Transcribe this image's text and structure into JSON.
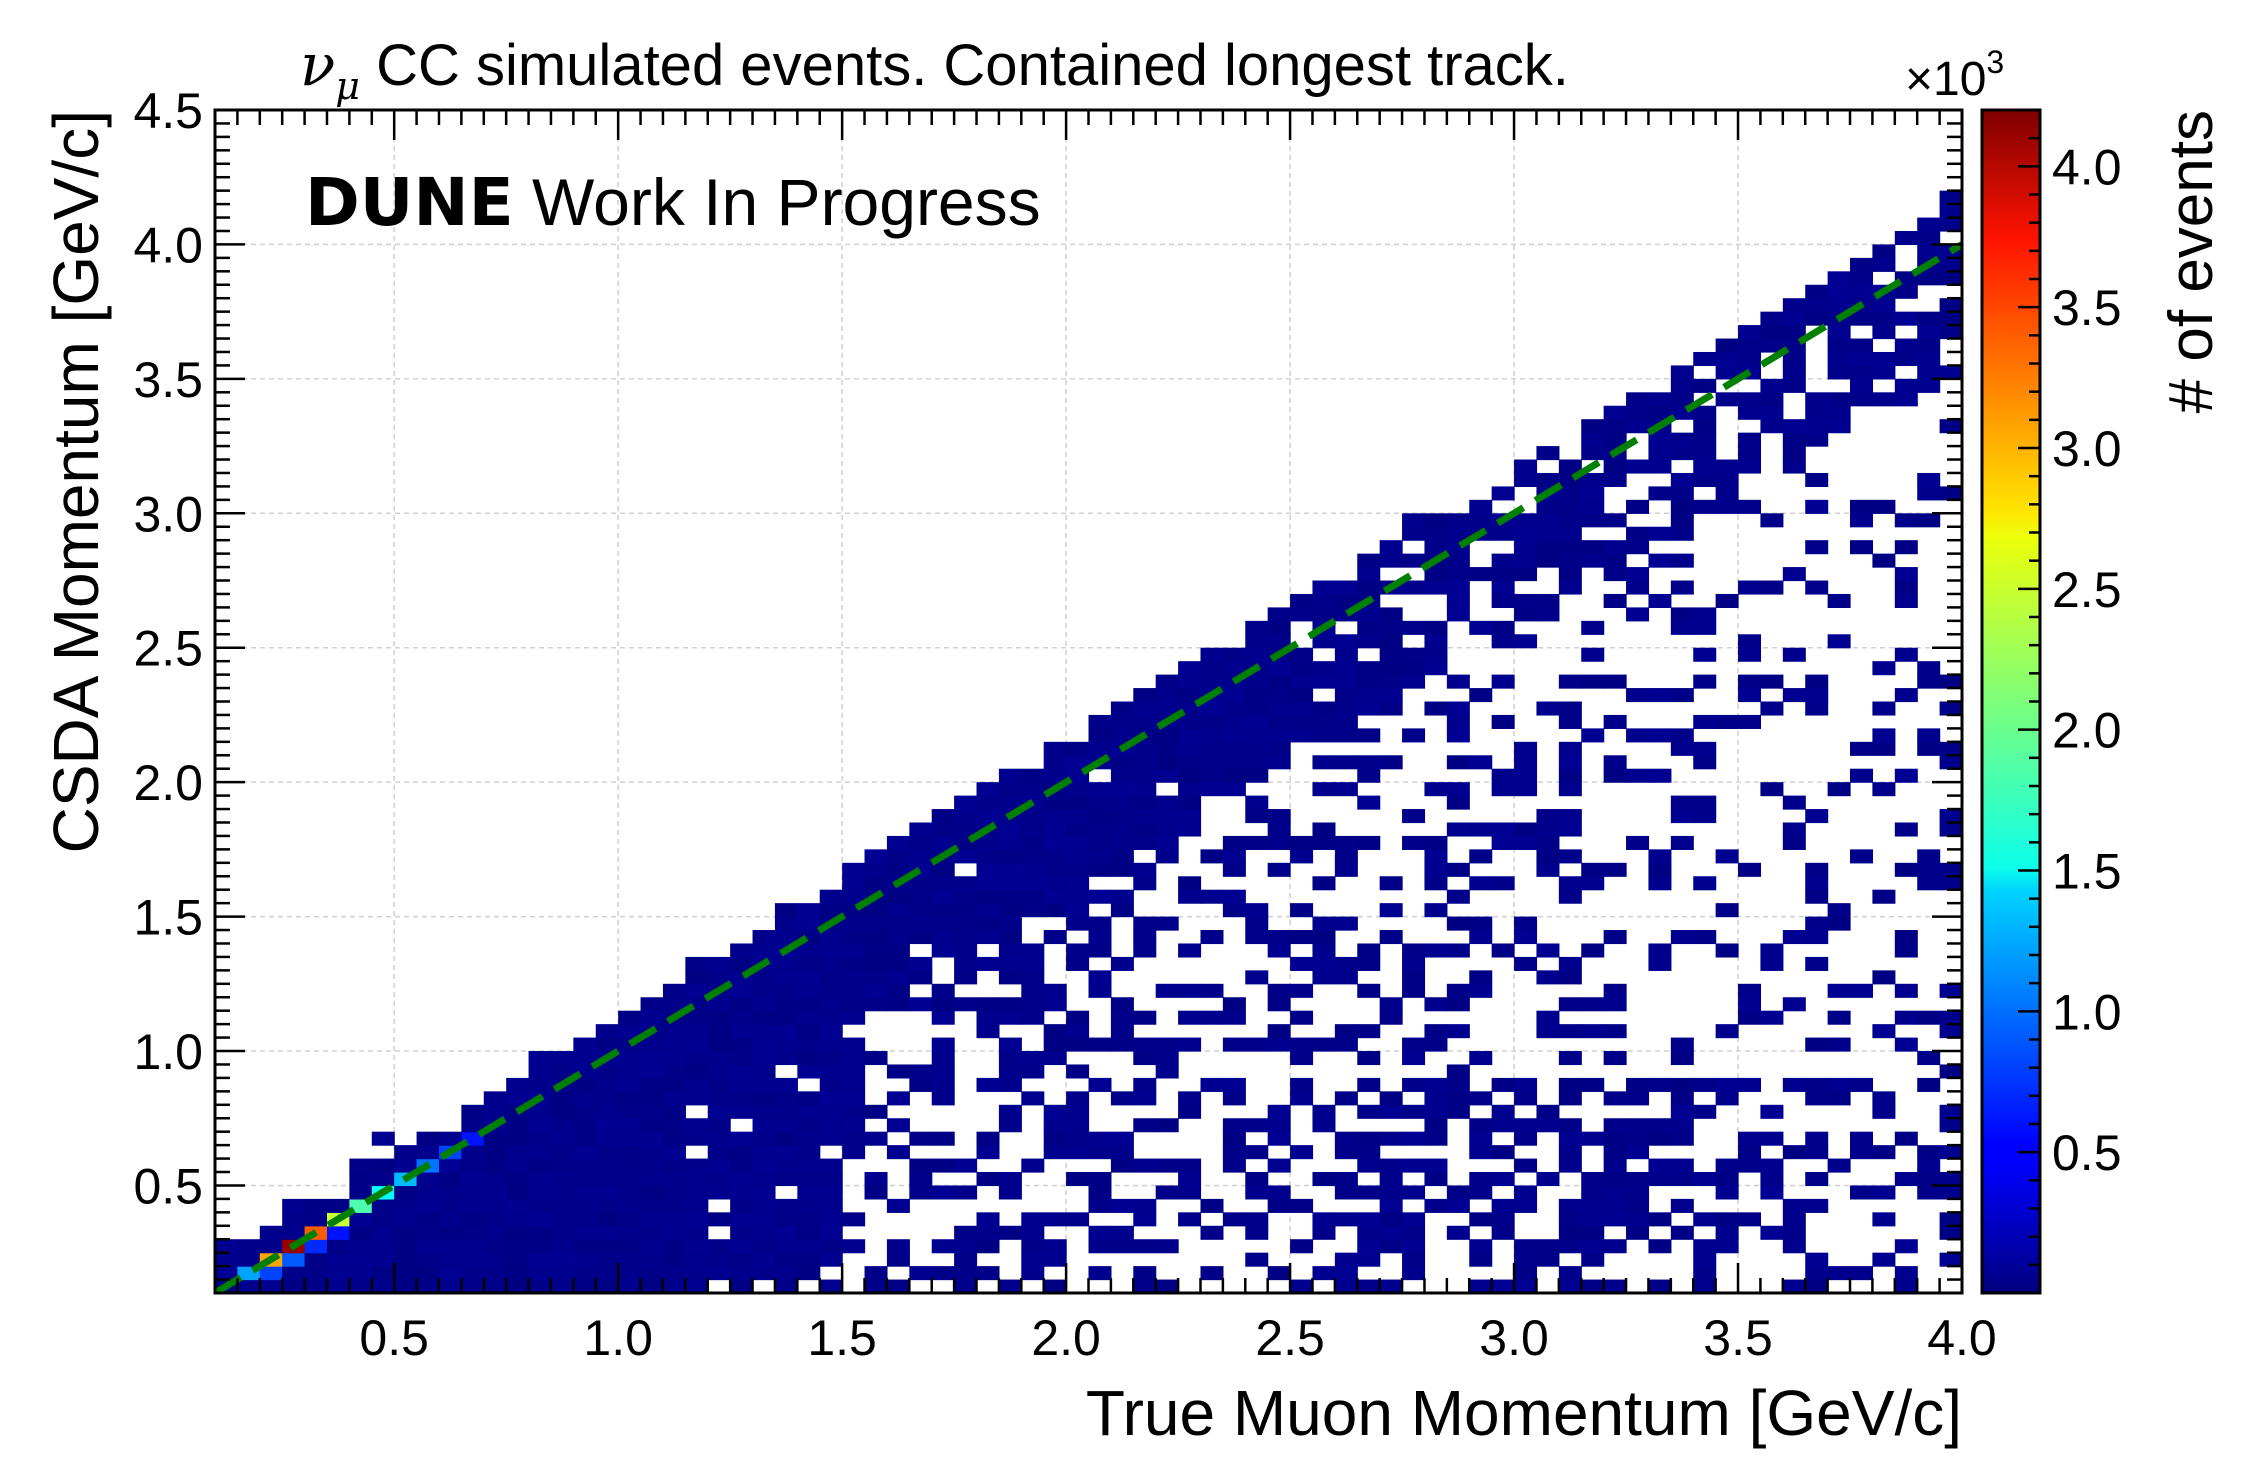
{
  "chart_data": {
    "type": "heatmap",
    "title_parts": {
      "nu": "ν",
      "mu": "μ",
      "rest": " CC simulated events. Contained longest track."
    },
    "xlabel": "True Muon Momentum [GeV/c]",
    "ylabel": "CSDA Momentum [GeV/c]",
    "zlabel": "# of events",
    "z_multiplier": {
      "base": "×10",
      "exp": "3"
    },
    "watermark": {
      "brand": "DUNE",
      "text": " Work In Progress"
    },
    "xlim": [
      0.1,
      4.0
    ],
    "ylim": [
      0.1,
      4.5
    ],
    "zlim": [
      0,
      4.2
    ],
    "xticks": [
      0.5,
      1.0,
      1.5,
      2.0,
      2.5,
      3.0,
      3.5,
      4.0
    ],
    "xtick_labels": [
      "0.5",
      "1.0",
      "1.5",
      "2.0",
      "2.5",
      "3.0",
      "3.5",
      "4.0"
    ],
    "yticks": [
      0.5,
      1.0,
      1.5,
      2.0,
      2.5,
      3.0,
      3.5,
      4.0,
      4.5
    ],
    "ytick_labels": [
      "0.5",
      "1.0",
      "1.5",
      "2.0",
      "2.5",
      "3.0",
      "3.5",
      "4.0",
      "4.5"
    ],
    "zticks": [
      0.5,
      1.0,
      1.5,
      2.0,
      2.5,
      3.0,
      3.5,
      4.0
    ],
    "ztick_labels": [
      "0.5",
      "1.0",
      "1.5",
      "2.0",
      "2.5",
      "3.0",
      "3.5",
      "4.0"
    ],
    "bin_size": 0.05,
    "grid": true,
    "colormap": "jet",
    "reference_line": {
      "style": "dashed",
      "color": "#008000",
      "x": [
        0.1,
        4.0
      ],
      "y": [
        0.1,
        4.0
      ]
    },
    "hot_cells": [
      {
        "x": 0.2,
        "y": 0.2,
        "z": 3.0
      },
      {
        "x": 0.25,
        "y": 0.25,
        "z": 4.1
      },
      {
        "x": 0.3,
        "y": 0.3,
        "z": 3.3
      },
      {
        "x": 0.35,
        "y": 0.35,
        "z": 2.4
      },
      {
        "x": 0.4,
        "y": 0.4,
        "z": 1.9
      },
      {
        "x": 0.45,
        "y": 0.45,
        "z": 1.6
      },
      {
        "x": 0.5,
        "y": 0.5,
        "z": 1.3
      },
      {
        "x": 0.55,
        "y": 0.55,
        "z": 1.0
      },
      {
        "x": 0.6,
        "y": 0.6,
        "z": 0.8
      },
      {
        "x": 0.65,
        "y": 0.65,
        "z": 0.6
      },
      {
        "x": 0.15,
        "y": 0.15,
        "z": 1.2
      },
      {
        "x": 0.2,
        "y": 0.15,
        "z": 0.8
      },
      {
        "x": 0.25,
        "y": 0.2,
        "z": 0.9
      },
      {
        "x": 0.3,
        "y": 0.25,
        "z": 0.7
      },
      {
        "x": 0.35,
        "y": 0.3,
        "z": 0.6
      }
    ],
    "density_note": "Remaining occupied bins are low counts (dark blue), dense along the diagonal band and sparse below it toward high true momentum."
  }
}
